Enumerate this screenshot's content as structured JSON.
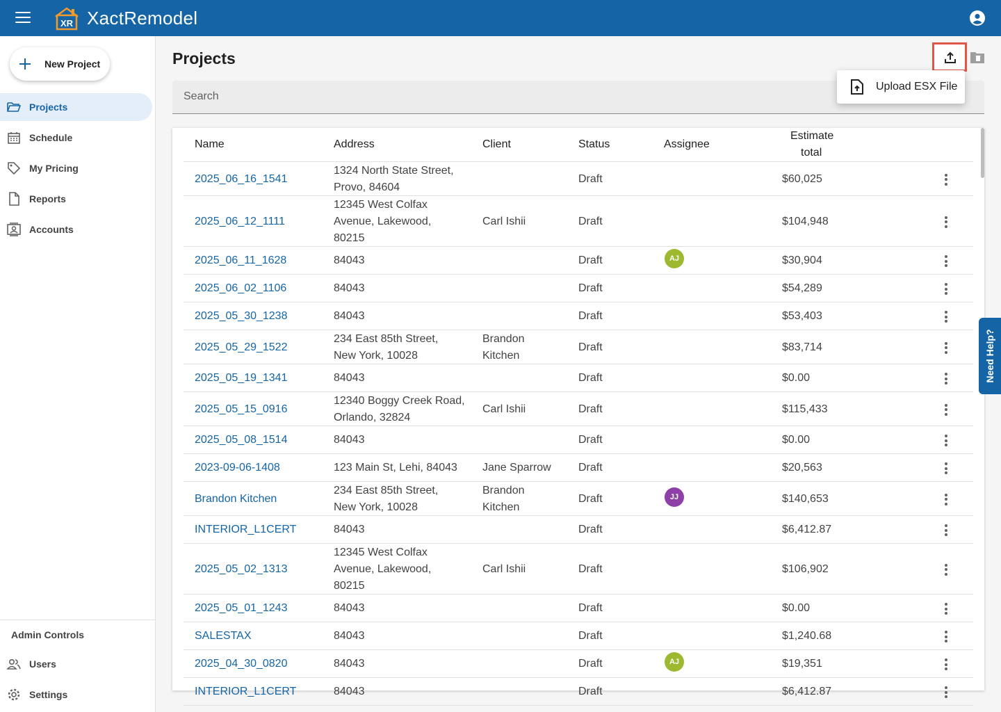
{
  "header": {
    "title": "XactRemodel",
    "logo_text": "XR"
  },
  "sidebar": {
    "new_project_label": "New Project",
    "items": [
      {
        "label": "Projects",
        "icon": "folder-icon",
        "active": true
      },
      {
        "label": "Schedule",
        "icon": "calendar-icon"
      },
      {
        "label": "My Pricing",
        "icon": "tag-icon"
      },
      {
        "label": "Reports",
        "icon": "document-icon"
      },
      {
        "label": "Accounts",
        "icon": "contact-card-icon"
      }
    ],
    "admin_title": "Admin Controls",
    "admin_items": [
      {
        "label": "Users",
        "icon": "users-icon"
      },
      {
        "label": "Settings",
        "icon": "gear-icon"
      }
    ]
  },
  "main": {
    "title": "Projects",
    "search_placeholder": "Search",
    "upload_menu_label": "Upload ESX File",
    "columns": [
      "Name",
      "Address",
      "Client",
      "Status",
      "Assignee",
      "Estimate",
      "total"
    ],
    "rows": [
      {
        "name": "2025_06_16_1541",
        "address": [
          "1324 North State Street,",
          "Provo, 84604"
        ],
        "client": [],
        "status": "Draft",
        "assignee": "",
        "total": "$60,025"
      },
      {
        "name": "2025_06_12_1111",
        "address": [
          "12345 West Colfax",
          "Avenue, Lakewood,",
          "80215"
        ],
        "client": [
          "Carl Ishii"
        ],
        "status": "Draft",
        "assignee": "",
        "total": "$104,948"
      },
      {
        "name": "2025_06_11_1628",
        "address": [
          "84043"
        ],
        "client": [],
        "status": "Draft",
        "assignee": "AJ",
        "total": "$30,904"
      },
      {
        "name": "2025_06_02_1106",
        "address": [
          "84043"
        ],
        "client": [],
        "status": "Draft",
        "assignee": "",
        "total": "$54,289"
      },
      {
        "name": "2025_05_30_1238",
        "address": [
          "84043"
        ],
        "client": [],
        "status": "Draft",
        "assignee": "",
        "total": "$53,403"
      },
      {
        "name": "2025_05_29_1522",
        "address": [
          "234 East 85th Street,",
          "New York, 10028"
        ],
        "client": [
          "Brandon",
          "Kitchen"
        ],
        "status": "Draft",
        "assignee": "",
        "total": "$83,714"
      },
      {
        "name": "2025_05_19_1341",
        "address": [
          "84043"
        ],
        "client": [],
        "status": "Draft",
        "assignee": "",
        "total": "$0.00"
      },
      {
        "name": "2025_05_15_0916",
        "address": [
          "12340 Boggy Creek Road,",
          "Orlando, 32824"
        ],
        "client": [
          "Carl Ishii"
        ],
        "status": "Draft",
        "assignee": "",
        "total": "$115,433"
      },
      {
        "name": "2025_05_08_1514",
        "address": [
          "84043"
        ],
        "client": [],
        "status": "Draft",
        "assignee": "",
        "total": "$0.00"
      },
      {
        "name": "2023-09-06-1408",
        "address": [
          "123 Main St, Lehi, 84043"
        ],
        "client": [
          "Jane Sparrow"
        ],
        "status": "Draft",
        "assignee": "",
        "total": "$20,563"
      },
      {
        "name": "Brandon Kitchen",
        "address": [
          "234 East 85th Street,",
          "New York, 10028"
        ],
        "client": [
          "Brandon",
          "Kitchen"
        ],
        "status": "Draft",
        "assignee": "JJ",
        "total": "$140,653"
      },
      {
        "name": "INTERIOR_L1CERT",
        "address": [
          "84043"
        ],
        "client": [],
        "status": "Draft",
        "assignee": "",
        "total": "$6,412.87"
      },
      {
        "name": "2025_05_02_1313",
        "address": [
          "12345 West Colfax",
          "Avenue, Lakewood,",
          "80215"
        ],
        "client": [
          "Carl Ishii"
        ],
        "status": "Draft",
        "assignee": "",
        "total": "$106,902"
      },
      {
        "name": "2025_05_01_1243",
        "address": [
          "84043"
        ],
        "client": [],
        "status": "Draft",
        "assignee": "",
        "total": "$0.00"
      },
      {
        "name": "SALESTAX",
        "address": [
          "84043"
        ],
        "client": [],
        "status": "Draft",
        "assignee": "",
        "total": "$1,240.68"
      },
      {
        "name": "2025_04_30_0820",
        "address": [
          "84043"
        ],
        "client": [],
        "status": "Draft",
        "assignee": "AJ",
        "total": "$19,351"
      },
      {
        "name": "INTERIOR_L1CERT",
        "address": [
          "84043"
        ],
        "client": [],
        "status": "Draft",
        "assignee": "",
        "total": "$6,412.87"
      }
    ]
  },
  "assignee_colors": {
    "AJ": "#9cb92f",
    "JJ": "#8e3fa8"
  },
  "need_help_label": "Need Help?"
}
